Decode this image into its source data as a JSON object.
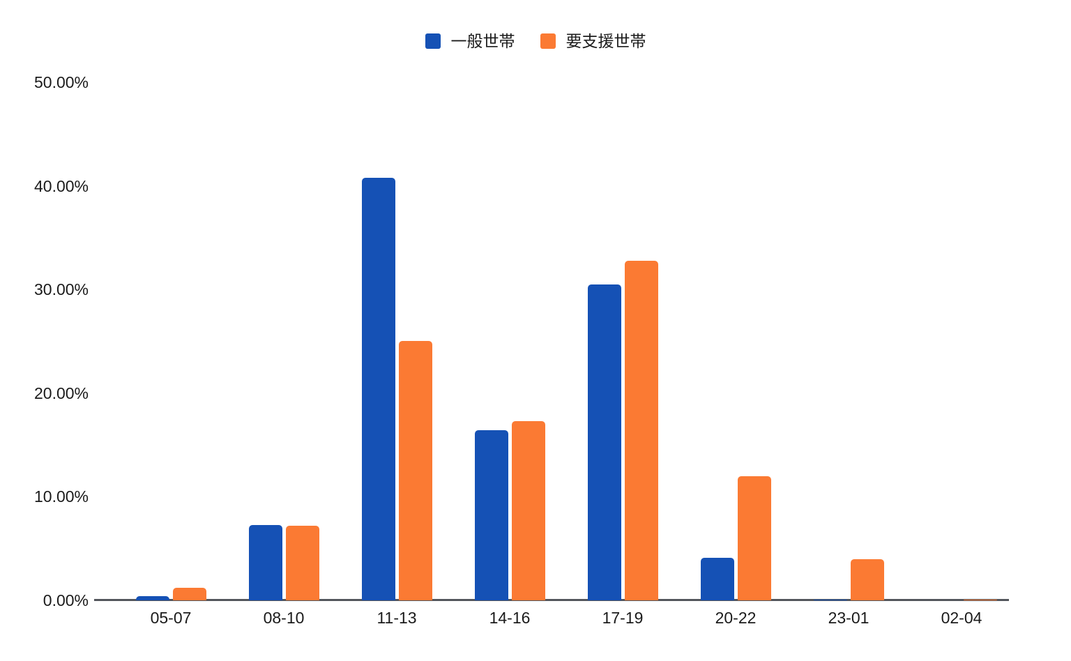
{
  "legend": {
    "position": "top-center"
  },
  "colors": {
    "series_general": "#1551B5",
    "series_support": "#FB7A33",
    "axis_line": "#53565c",
    "label_text": "#1b1b1b",
    "background": "#ffffff"
  },
  "chart_data": {
    "type": "bar",
    "title": "",
    "xlabel": "",
    "ylabel": "",
    "categories": [
      "05-07",
      "08-10",
      "11-13",
      "14-16",
      "17-19",
      "20-22",
      "23-01",
      "02-04"
    ],
    "series": [
      {
        "name": "一般世帯",
        "color": "#1551B5",
        "values": [
          0.4,
          7.3,
          40.8,
          16.4,
          30.5,
          4.1,
          0.1,
          0
        ]
      },
      {
        "name": "要支援世帯",
        "color": "#FB7A33",
        "values": [
          1.2,
          7.2,
          25.0,
          17.3,
          32.8,
          12.0,
          4.0,
          0.1
        ]
      }
    ],
    "ylim": [
      0,
      50
    ],
    "ytick_values": [
      50,
      40,
      30,
      20,
      10,
      0
    ],
    "ytick_labels": [
      "50.00%",
      "40.00%",
      "30.00%",
      "20.00%",
      "10.00%",
      "0.00%"
    ],
    "grid": false,
    "legend_position": "top-center"
  }
}
